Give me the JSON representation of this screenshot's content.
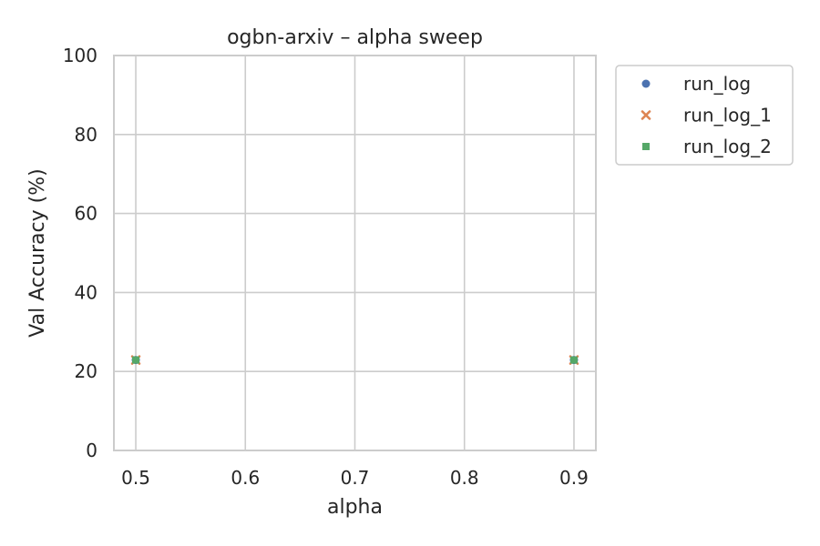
{
  "chart_data": {
    "type": "scatter",
    "title": "ogbn-arxiv – alpha sweep",
    "xlabel": "alpha",
    "ylabel": "Val Accuracy (%)",
    "xlim": [
      0.48,
      0.92
    ],
    "ylim": [
      0,
      100
    ],
    "xticks": [
      0.5,
      0.6,
      0.7,
      0.8,
      0.9
    ],
    "yticks": [
      0,
      20,
      40,
      60,
      80,
      100
    ],
    "grid": true,
    "legend_position": "outside-top-right",
    "series": [
      {
        "name": "run_log",
        "marker": "circle",
        "color": "#4c72b0",
        "x": [
          0.5,
          0.9
        ],
        "y": [
          22.9,
          22.9
        ]
      },
      {
        "name": "run_log_1",
        "marker": "x",
        "color": "#dd8452",
        "x": [
          0.5,
          0.9
        ],
        "y": [
          22.9,
          22.9
        ]
      },
      {
        "name": "run_log_2",
        "marker": "square",
        "color": "#55a868",
        "x": [
          0.5,
          0.9
        ],
        "y": [
          22.9,
          22.9
        ]
      }
    ]
  }
}
